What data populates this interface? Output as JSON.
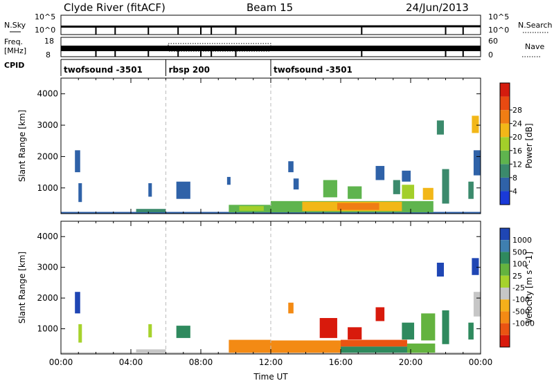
{
  "header": {
    "station": "Clyde River (fitACF)",
    "beam": "Beam 15",
    "date": "24/Jun/2013"
  },
  "strip_panels": {
    "nsky": {
      "left_label": "N.Sky",
      "right_label": "N.Search",
      "left_ticks": [
        "10^5",
        "10^0"
      ],
      "right_ticks": [
        "10^5",
        "10^0"
      ]
    },
    "freq": {
      "left_label_1": "Freq.",
      "left_label_2": "[MHz]",
      "left_ticks": [
        "18",
        "8"
      ],
      "right_label": "Nave",
      "right_ticks": [
        "60",
        "0"
      ]
    },
    "cpid": {
      "label": "CPID",
      "segments": [
        {
          "name": "twofsound -3501",
          "start_hour": 0
        },
        {
          "name": "rbsp 200",
          "start_hour": 6
        },
        {
          "name": "twofsound -3501",
          "start_hour": 12
        }
      ]
    },
    "dropout_hours": [
      2.0,
      3.1,
      5.0,
      6.7,
      8.0,
      8.6,
      10.0,
      17.2,
      22.0,
      23.0
    ]
  },
  "chart_data": [
    {
      "type": "heatmap",
      "name": "power",
      "ylabel": "Slant Range [km]",
      "xlabel": "",
      "xlim": [
        0,
        24
      ],
      "ylim": [
        180,
        4500
      ],
      "yticks": [
        1000,
        2000,
        3000,
        4000
      ],
      "colorbar": {
        "label": "Power [dB]",
        "ticks": [
          "4",
          "8",
          "12",
          "16",
          "20",
          "24",
          "28"
        ],
        "colors": [
          "#1a3ad8",
          "#2f62a8",
          "#3b8a6c",
          "#5fb44e",
          "#a3cf2a",
          "#f2b718",
          "#f07d14",
          "#e84a12",
          "#d41c0e"
        ]
      },
      "patches": [
        {
          "x0": 0.0,
          "x1": 24.0,
          "y0": 190,
          "y1": 235,
          "value": 4
        },
        {
          "x0": 4.3,
          "x1": 6.0,
          "y0": 225,
          "y1": 330,
          "value": 10
        },
        {
          "x0": 9.6,
          "x1": 12.0,
          "y0": 220,
          "y1": 460,
          "value": 13
        },
        {
          "x0": 10.2,
          "x1": 11.6,
          "y0": 270,
          "y1": 420,
          "value": 18
        },
        {
          "x0": 12.0,
          "x1": 21.3,
          "y0": 220,
          "y1": 580,
          "value": 14
        },
        {
          "x0": 13.8,
          "x1": 19.5,
          "y0": 260,
          "y1": 560,
          "value": 22
        },
        {
          "x0": 15.8,
          "x1": 18.2,
          "y0": 300,
          "y1": 520,
          "value": 27
        },
        {
          "x0": 0.8,
          "x1": 1.1,
          "y0": 1500,
          "y1": 2200,
          "value": 6
        },
        {
          "x0": 1.0,
          "x1": 1.2,
          "y0": 550,
          "y1": 1150,
          "value": 4
        },
        {
          "x0": 5.0,
          "x1": 5.2,
          "y0": 720,
          "y1": 1150,
          "value": 5
        },
        {
          "x0": 6.6,
          "x1": 7.4,
          "y0": 650,
          "y1": 1200,
          "value": 4
        },
        {
          "x0": 9.5,
          "x1": 9.7,
          "y0": 1100,
          "y1": 1350,
          "value": 4
        },
        {
          "x0": 13.0,
          "x1": 13.3,
          "y0": 1500,
          "y1": 1850,
          "value": 6
        },
        {
          "x0": 13.3,
          "x1": 13.6,
          "y0": 950,
          "y1": 1300,
          "value": 5
        },
        {
          "x0": 15.0,
          "x1": 15.8,
          "y0": 700,
          "y1": 1250,
          "value": 14
        },
        {
          "x0": 16.4,
          "x1": 17.2,
          "y0": 650,
          "y1": 1050,
          "value": 12
        },
        {
          "x0": 18.0,
          "x1": 18.5,
          "y0": 1250,
          "y1": 1700,
          "value": 6
        },
        {
          "x0": 19.5,
          "x1": 20.0,
          "y0": 1200,
          "y1": 1550,
          "value": 4
        },
        {
          "x0": 19.5,
          "x1": 20.2,
          "y0": 650,
          "y1": 1100,
          "value": 18
        },
        {
          "x0": 20.7,
          "x1": 21.3,
          "y0": 620,
          "y1": 1000,
          "value": 20
        },
        {
          "x0": 21.5,
          "x1": 21.9,
          "y0": 2700,
          "y1": 3150,
          "value": 10
        },
        {
          "x0": 21.8,
          "x1": 22.2,
          "y0": 500,
          "y1": 1600,
          "value": 8
        },
        {
          "x0": 23.5,
          "x1": 23.9,
          "y0": 2750,
          "y1": 3300,
          "value": 20
        },
        {
          "x0": 23.6,
          "x1": 24.0,
          "y0": 1400,
          "y1": 2200,
          "value": 6
        },
        {
          "x0": 23.3,
          "x1": 23.6,
          "y0": 650,
          "y1": 1200,
          "value": 8
        },
        {
          "x0": 19.0,
          "x1": 19.4,
          "y0": 800,
          "y1": 1250,
          "value": 10
        }
      ]
    },
    {
      "type": "heatmap",
      "name": "velocity",
      "ylabel": "Slant Range [km]",
      "xlabel": "Time UT",
      "xlim": [
        0,
        24
      ],
      "ylim": [
        180,
        4500
      ],
      "yticks": [
        1000,
        2000,
        3000,
        4000
      ],
      "xticks": [
        "00:00",
        "04:00",
        "08:00",
        "12:00",
        "16:00",
        "20:00",
        "00:00"
      ],
      "colorbar": {
        "label": "Velocity [m s^-1]",
        "ticks": [
          "1000",
          "500",
          "100",
          "25",
          "-25",
          "-100",
          "-500",
          "-1000"
        ],
        "colors": [
          "#1f46b4",
          "#3f7fb0",
          "#2f8a5e",
          "#64b33f",
          "#a6d22c",
          "#c6c6c6",
          "#f5b01a",
          "#f38a14",
          "#ea5412",
          "#d81a0c"
        ]
      },
      "patches": [
        {
          "x0": 0.0,
          "x1": 24.0,
          "y0": 190,
          "y1": 235,
          "value": 0
        },
        {
          "x0": 4.3,
          "x1": 6.0,
          "y0": 225,
          "y1": 330,
          "value": 0
        },
        {
          "x0": 9.6,
          "x1": 12.0,
          "y0": 220,
          "y1": 640,
          "value": -110
        },
        {
          "x0": 12.0,
          "x1": 16.0,
          "y0": 220,
          "y1": 620,
          "value": -130
        },
        {
          "x0": 16.0,
          "x1": 19.8,
          "y0": 420,
          "y1": 640,
          "value": -260
        },
        {
          "x0": 16.0,
          "x1": 20.0,
          "y0": 220,
          "y1": 420,
          "value": 150
        },
        {
          "x0": 19.8,
          "x1": 21.4,
          "y0": 220,
          "y1": 520,
          "value": 60
        },
        {
          "x0": 0.8,
          "x1": 1.1,
          "y0": 1500,
          "y1": 2200,
          "value": 600
        },
        {
          "x0": 1.0,
          "x1": 1.2,
          "y0": 550,
          "y1": 1150,
          "value": 40
        },
        {
          "x0": 5.0,
          "x1": 5.2,
          "y0": 720,
          "y1": 1150,
          "value": 40
        },
        {
          "x0": 6.6,
          "x1": 7.4,
          "y0": 700,
          "y1": 1100,
          "value": 200
        },
        {
          "x0": 13.0,
          "x1": 13.3,
          "y0": 1500,
          "y1": 1850,
          "value": -150
        },
        {
          "x0": 14.8,
          "x1": 15.8,
          "y0": 700,
          "y1": 1350,
          "value": -600
        },
        {
          "x0": 16.4,
          "x1": 17.2,
          "y0": 650,
          "y1": 1050,
          "value": -600
        },
        {
          "x0": 18.0,
          "x1": 18.5,
          "y0": 1250,
          "y1": 1700,
          "value": -600
        },
        {
          "x0": 19.5,
          "x1": 20.2,
          "y0": 650,
          "y1": 1200,
          "value": 150
        },
        {
          "x0": 20.6,
          "x1": 21.4,
          "y0": 620,
          "y1": 1500,
          "value": 60
        },
        {
          "x0": 21.8,
          "x1": 22.2,
          "y0": 500,
          "y1": 1600,
          "value": 150
        },
        {
          "x0": 21.5,
          "x1": 21.9,
          "y0": 2700,
          "y1": 3150,
          "value": 700
        },
        {
          "x0": 23.5,
          "x1": 23.9,
          "y0": 2750,
          "y1": 3300,
          "value": 800
        },
        {
          "x0": 23.6,
          "x1": 24.0,
          "y0": 1400,
          "y1": 2200,
          "value": 0
        },
        {
          "x0": 23.3,
          "x1": 23.6,
          "y0": 650,
          "y1": 1200,
          "value": 150
        }
      ]
    }
  ]
}
